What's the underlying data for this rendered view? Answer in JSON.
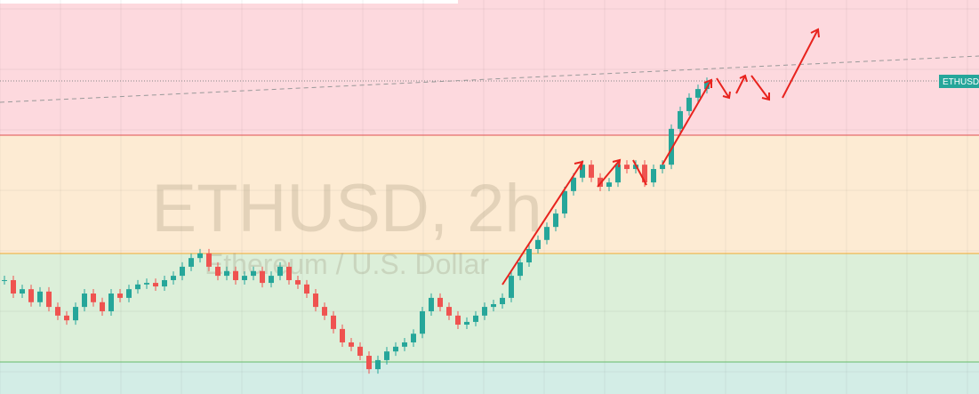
{
  "chart_data": {
    "type": "candlestick",
    "title": "ETHUSD, 2h",
    "subtitle": "Ethereum / U.S. Dollar",
    "price_label": "ETHUSD",
    "up_color": "#26a69a",
    "down_color": "#ef5350",
    "values": [
      28.9,
      25.5,
      26.6,
      23.3,
      26.0,
      22.1,
      19.9,
      18.7,
      22.1,
      25.5,
      23.3,
      21.0,
      25.5,
      24.4,
      26.6,
      27.8,
      28.2,
      27.3,
      28.9,
      30.0,
      32.3,
      34.5,
      35.7,
      32.3,
      30.0,
      31.2,
      28.9,
      30.0,
      31.2,
      28.2,
      30.0,
      32.3,
      28.9,
      27.8,
      25.5,
      22.1,
      19.9,
      16.5,
      13.1,
      12.0,
      9.7,
      6.3,
      8.6,
      10.8,
      12.0,
      13.1,
      15.3,
      21.0,
      24.4,
      22.1,
      19.9,
      17.6,
      18.3,
      19.9,
      22.1,
      22.8,
      24.4,
      30.0,
      33.4,
      36.8,
      39.1,
      42.4,
      45.8,
      51.5,
      54.9,
      58.2,
      54.9,
      52.6,
      53.7,
      58.2,
      57.1,
      58.2,
      53.7,
      57.1,
      58.2,
      67.3,
      71.8,
      75.2,
      77.4,
      79.2
    ],
    "ylim": [
      0,
      100
    ]
  }
}
